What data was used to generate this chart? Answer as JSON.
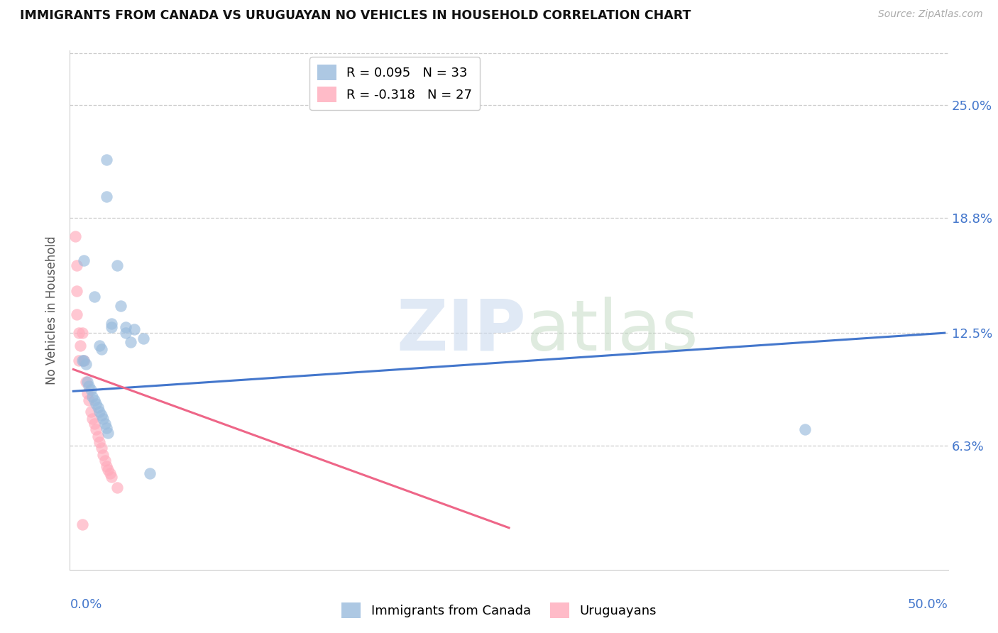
{
  "title": "IMMIGRANTS FROM CANADA VS URUGUAYAN NO VEHICLES IN HOUSEHOLD CORRELATION CHART",
  "source": "Source: ZipAtlas.com",
  "ylabel": "No Vehicles in Household",
  "ytick_labels": [
    "25.0%",
    "18.8%",
    "12.5%",
    "6.3%"
  ],
  "ytick_values": [
    0.25,
    0.188,
    0.125,
    0.063
  ],
  "xlim": [
    -0.002,
    0.502
  ],
  "ylim": [
    -0.005,
    0.28
  ],
  "legend1_r": "R = 0.095",
  "legend1_n": "N = 33",
  "legend2_r": "R = -0.318",
  "legend2_n": "N = 27",
  "blue_color": "#99bbdd",
  "pink_color": "#ffaabb",
  "line_blue": "#4477cc",
  "line_pink": "#ee6688",
  "text_blue": "#4477cc",
  "blue_dots": [
    [
      0.019,
      0.22
    ],
    [
      0.019,
      0.2
    ],
    [
      0.006,
      0.165
    ],
    [
      0.025,
      0.162
    ],
    [
      0.012,
      0.145
    ],
    [
      0.027,
      0.14
    ],
    [
      0.022,
      0.13
    ],
    [
      0.03,
      0.128
    ],
    [
      0.022,
      0.128
    ],
    [
      0.035,
      0.127
    ],
    [
      0.03,
      0.125
    ],
    [
      0.04,
      0.122
    ],
    [
      0.033,
      0.12
    ],
    [
      0.015,
      0.118
    ],
    [
      0.016,
      0.116
    ],
    [
      0.005,
      0.11
    ],
    [
      0.006,
      0.11
    ],
    [
      0.007,
      0.108
    ],
    [
      0.008,
      0.098
    ],
    [
      0.009,
      0.096
    ],
    [
      0.01,
      0.094
    ],
    [
      0.011,
      0.09
    ],
    [
      0.012,
      0.088
    ],
    [
      0.013,
      0.086
    ],
    [
      0.014,
      0.084
    ],
    [
      0.015,
      0.082
    ],
    [
      0.016,
      0.08
    ],
    [
      0.017,
      0.078
    ],
    [
      0.018,
      0.075
    ],
    [
      0.019,
      0.073
    ],
    [
      0.02,
      0.07
    ],
    [
      0.044,
      0.048
    ],
    [
      0.42,
      0.072
    ]
  ],
  "pink_dots": [
    [
      0.001,
      0.178
    ],
    [
      0.002,
      0.162
    ],
    [
      0.002,
      0.148
    ],
    [
      0.002,
      0.135
    ],
    [
      0.003,
      0.125
    ],
    [
      0.004,
      0.118
    ],
    [
      0.003,
      0.11
    ],
    [
      0.005,
      0.125
    ],
    [
      0.006,
      0.11
    ],
    [
      0.007,
      0.098
    ],
    [
      0.008,
      0.092
    ],
    [
      0.009,
      0.088
    ],
    [
      0.01,
      0.082
    ],
    [
      0.011,
      0.078
    ],
    [
      0.012,
      0.075
    ],
    [
      0.013,
      0.072
    ],
    [
      0.014,
      0.068
    ],
    [
      0.015,
      0.065
    ],
    [
      0.016,
      0.062
    ],
    [
      0.017,
      0.058
    ],
    [
      0.018,
      0.055
    ],
    [
      0.019,
      0.052
    ],
    [
      0.02,
      0.05
    ],
    [
      0.021,
      0.048
    ],
    [
      0.022,
      0.046
    ],
    [
      0.025,
      0.04
    ],
    [
      0.005,
      0.02
    ]
  ],
  "blue_trend_x": [
    0.0,
    0.5
  ],
  "blue_trend_y": [
    0.093,
    0.125
  ],
  "pink_trend_x": [
    0.0,
    0.25
  ],
  "pink_trend_y": [
    0.105,
    0.018
  ]
}
